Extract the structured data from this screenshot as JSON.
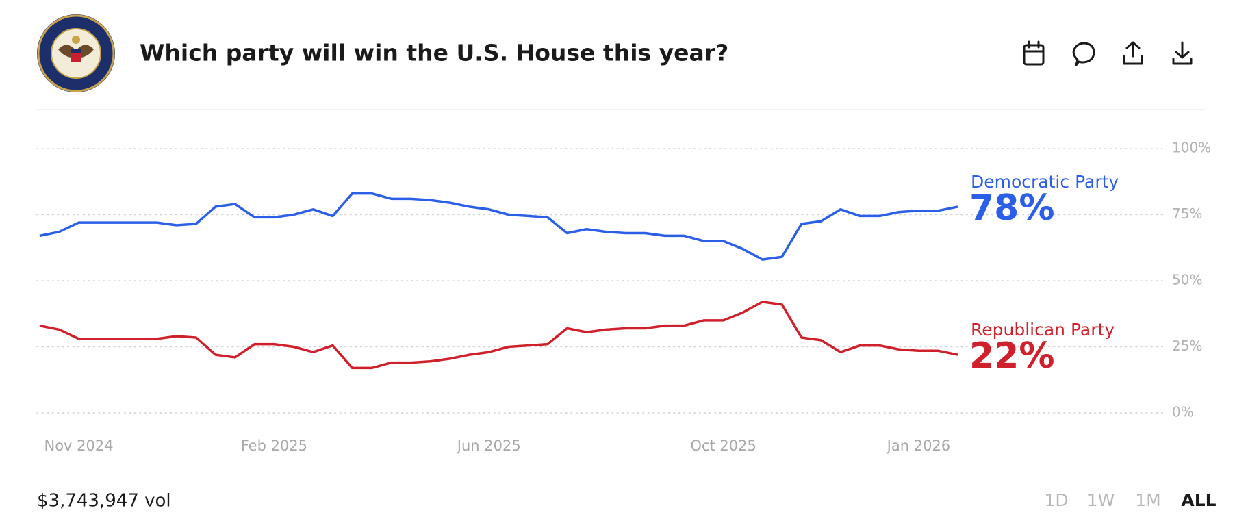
{
  "header": {
    "title": "Which party will win the U.S. House this year?"
  },
  "chart_data": {
    "type": "line",
    "categories": [
      null,
      null,
      "Nov 2024",
      null,
      null,
      null,
      null,
      null,
      null,
      null,
      null,
      null,
      "Feb 2025",
      null,
      null,
      null,
      null,
      null,
      null,
      null,
      null,
      null,
      null,
      "Jun 2025",
      null,
      null,
      null,
      null,
      null,
      null,
      null,
      null,
      null,
      null,
      null,
      "Oct 2025",
      null,
      null,
      null,
      null,
      null,
      null,
      null,
      null,
      null,
      "Jan 2026",
      null,
      null
    ],
    "series": [
      {
        "name": "Democratic Party",
        "color": "#2c5fe8",
        "values": [
          67,
          68.5,
          72,
          72,
          72,
          72,
          72,
          71,
          71.5,
          78,
          79,
          74,
          74,
          75,
          77,
          74.5,
          83,
          83,
          81,
          81,
          80.5,
          79.5,
          78,
          77,
          75,
          74.5,
          74,
          68,
          69.5,
          68.5,
          68,
          68,
          67,
          67,
          65,
          65,
          62,
          58,
          59,
          71.5,
          72.5,
          77,
          74.5,
          74.5,
          76,
          76.5,
          76.5,
          78
        ],
        "value_labels": [
          null,
          null,
          null,
          null,
          null,
          null,
          null,
          null,
          null,
          null,
          null,
          null,
          null,
          null,
          null,
          null,
          null,
          null,
          null,
          null,
          null,
          null,
          null,
          null,
          null,
          null,
          null,
          null,
          null,
          null,
          null,
          null,
          null,
          null,
          null,
          null,
          null,
          null,
          null,
          null,
          null,
          null,
          null,
          null,
          null,
          null,
          null,
          "78%"
        ]
      },
      {
        "name": "Republican Party",
        "color": "#d0202b",
        "values": [
          33,
          31.5,
          28,
          28,
          28,
          28,
          28,
          29,
          28.5,
          22,
          21,
          26,
          26,
          25,
          23,
          25.5,
          17,
          17,
          19,
          19,
          19.5,
          20.5,
          22,
          23,
          25,
          25.5,
          26,
          32,
          30.5,
          31.5,
          32,
          32,
          33,
          33,
          35,
          35,
          38,
          42,
          41,
          28.5,
          27.5,
          23,
          25.5,
          25.5,
          24,
          23.5,
          23.5,
          22
        ],
        "value_labels": [
          null,
          null,
          null,
          null,
          null,
          null,
          null,
          null,
          null,
          null,
          null,
          null,
          null,
          null,
          null,
          null,
          null,
          null,
          null,
          null,
          null,
          null,
          null,
          null,
          null,
          null,
          null,
          null,
          null,
          null,
          null,
          null,
          null,
          null,
          null,
          null,
          null,
          null,
          null,
          null,
          null,
          null,
          null,
          null,
          null,
          null,
          null,
          "22%"
        ]
      }
    ],
    "ylim": [
      0,
      100
    ],
    "yticks": [
      {
        "value": 0,
        "label": "0%"
      },
      {
        "value": 25,
        "label": "25%"
      },
      {
        "value": 50,
        "label": "50%"
      },
      {
        "value": 75,
        "label": "75%"
      },
      {
        "value": 100,
        "label": "100%"
      }
    ],
    "grid": true
  },
  "footer": {
    "volume": "$3,743,947 vol",
    "ranges": [
      "1D",
      "1W",
      "1M",
      "ALL"
    ],
    "active_range": 3
  }
}
